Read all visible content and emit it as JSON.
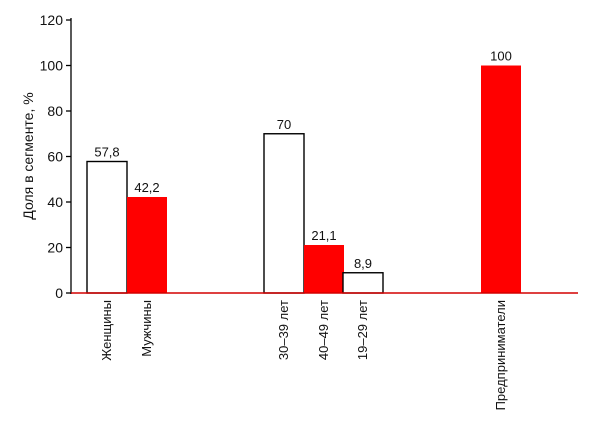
{
  "chart_data": {
    "type": "bar",
    "ylabel": "Доля в сегменте, %",
    "ylim": [
      0,
      120
    ],
    "yticks": [
      0,
      20,
      40,
      60,
      80,
      100,
      120
    ],
    "grid": false,
    "legend": "none",
    "colors": {
      "filled": "#ff0000",
      "hollow": "#ffffff",
      "edge": "#000000",
      "baseline": "#d40000"
    },
    "categories": [
      "Женщины",
      "Мужчины",
      "30–39 лет",
      "40–49 лет",
      "19–29 лет",
      "Предприниматели"
    ],
    "values": [
      57.8,
      42.2,
      70,
      21.1,
      8.9,
      100
    ],
    "value_labels": [
      "57,8",
      "42,2",
      "70",
      "21,1",
      "8,9",
      "100"
    ],
    "fills": [
      "hollow",
      "filled",
      "hollow",
      "filled",
      "hollow",
      "filled"
    ],
    "groups": [
      [
        0,
        1
      ],
      [
        2,
        3,
        4
      ],
      [
        5
      ]
    ]
  }
}
